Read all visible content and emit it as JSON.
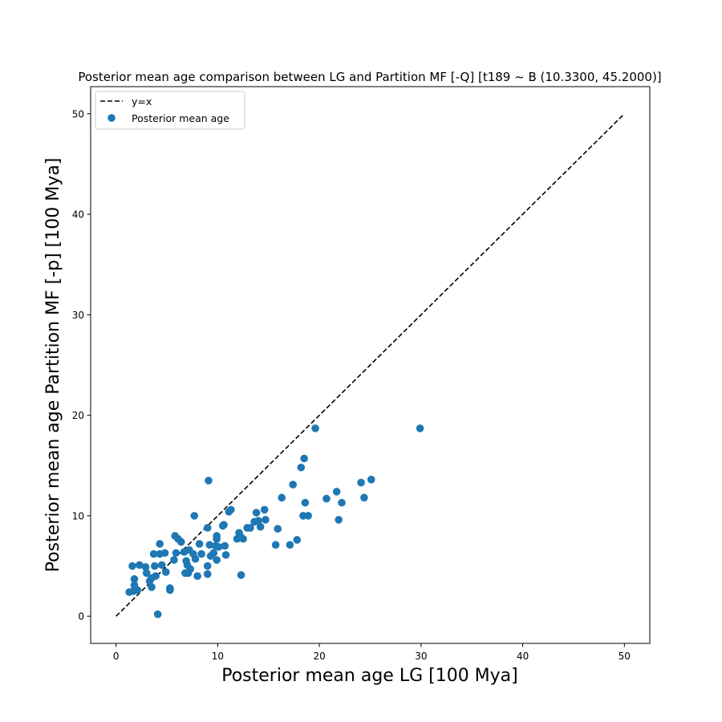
{
  "chart_data": {
    "type": "scatter",
    "title": "Posterior mean age comparison between LG and Partition MF [-Q] [t189 ~ B (10.3300, 45.2000)]",
    "xlabel": "Posterior mean age LG [100 Mya]",
    "ylabel": "Posterior mean age Partition MF [-p] [100 Mya]",
    "xlim": [
      -2.5,
      52.5
    ],
    "ylim": [
      -2.7,
      52.7
    ],
    "xticks": [
      0,
      10,
      20,
      30,
      40,
      50
    ],
    "yticks": [
      0,
      10,
      20,
      30,
      40,
      50
    ],
    "xtick_labels": [
      "0",
      "10",
      "20",
      "30",
      "40",
      "50"
    ],
    "ytick_labels": [
      "0",
      "10",
      "20",
      "30",
      "40",
      "50"
    ],
    "grid": false,
    "legend_position": "top-left",
    "series": [
      {
        "name": "y=x",
        "kind": "line",
        "style": "dashed",
        "color": "#000000",
        "x": [
          0,
          50
        ],
        "y": [
          0,
          50
        ]
      },
      {
        "name": "Posterior mean age",
        "kind": "scatter",
        "color": "#1f77b4",
        "points": [
          [
            1.3,
            2.4
          ],
          [
            1.6,
            5.0
          ],
          [
            1.7,
            2.5
          ],
          [
            1.8,
            3.7
          ],
          [
            1.8,
            3.1
          ],
          [
            2.1,
            2.6
          ],
          [
            2.3,
            5.1
          ],
          [
            2.9,
            4.9
          ],
          [
            3.0,
            4.3
          ],
          [
            3.3,
            3.5
          ],
          [
            3.5,
            3.8
          ],
          [
            3.5,
            2.9
          ],
          [
            3.7,
            6.2
          ],
          [
            3.8,
            5.0
          ],
          [
            3.9,
            4.0
          ],
          [
            4.1,
            0.2
          ],
          [
            4.3,
            7.2
          ],
          [
            4.3,
            6.2
          ],
          [
            4.5,
            5.1
          ],
          [
            4.8,
            6.3
          ],
          [
            4.9,
            4.4
          ],
          [
            5.3,
            2.6
          ],
          [
            5.3,
            2.8
          ],
          [
            5.7,
            5.6
          ],
          [
            5.8,
            8.0
          ],
          [
            5.9,
            6.3
          ],
          [
            6.1,
            7.7
          ],
          [
            6.4,
            7.4
          ],
          [
            6.7,
            6.4
          ],
          [
            6.8,
            4.3
          ],
          [
            6.9,
            5.5
          ],
          [
            7.0,
            5.1
          ],
          [
            7.1,
            4.3
          ],
          [
            7.2,
            6.6
          ],
          [
            7.3,
            4.7
          ],
          [
            7.6,
            6.2
          ],
          [
            7.7,
            10.0
          ],
          [
            7.8,
            5.7
          ],
          [
            8.0,
            4.0
          ],
          [
            8.2,
            7.2
          ],
          [
            8.4,
            6.2
          ],
          [
            9.0,
            8.8
          ],
          [
            9.0,
            5.0
          ],
          [
            9.0,
            4.2
          ],
          [
            9.1,
            13.5
          ],
          [
            9.2,
            7.1
          ],
          [
            9.3,
            6.0
          ],
          [
            9.6,
            6.3
          ],
          [
            9.8,
            7.0
          ],
          [
            9.9,
            8.0
          ],
          [
            9.9,
            7.7
          ],
          [
            9.9,
            5.6
          ],
          [
            10.1,
            6.9
          ],
          [
            10.5,
            9.0
          ],
          [
            10.6,
            9.1
          ],
          [
            10.7,
            7.0
          ],
          [
            10.8,
            6.1
          ],
          [
            11.1,
            10.4
          ],
          [
            11.3,
            10.6
          ],
          [
            11.9,
            7.7
          ],
          [
            12.1,
            8.3
          ],
          [
            12.2,
            8.0
          ],
          [
            12.3,
            4.1
          ],
          [
            12.5,
            7.7
          ],
          [
            12.9,
            8.8
          ],
          [
            13.2,
            8.8
          ],
          [
            13.6,
            9.4
          ],
          [
            13.8,
            10.3
          ],
          [
            14.0,
            9.5
          ],
          [
            14.2,
            8.9
          ],
          [
            14.6,
            10.6
          ],
          [
            14.7,
            9.6
          ],
          [
            15.7,
            7.1
          ],
          [
            15.9,
            8.7
          ],
          [
            16.3,
            11.8
          ],
          [
            17.1,
            7.1
          ],
          [
            17.4,
            13.1
          ],
          [
            17.8,
            7.6
          ],
          [
            18.2,
            14.8
          ],
          [
            18.4,
            10.0
          ],
          [
            18.5,
            15.7
          ],
          [
            18.6,
            11.3
          ],
          [
            18.9,
            10.0
          ],
          [
            19.6,
            18.7
          ],
          [
            20.7,
            11.7
          ],
          [
            21.7,
            12.4
          ],
          [
            21.9,
            9.6
          ],
          [
            22.2,
            11.3
          ],
          [
            24.1,
            13.3
          ],
          [
            24.4,
            11.8
          ],
          [
            25.1,
            13.6
          ],
          [
            29.9,
            18.7
          ]
        ]
      }
    ]
  }
}
